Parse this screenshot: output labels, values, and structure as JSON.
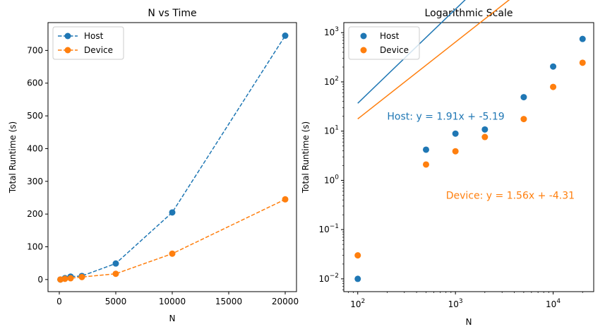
{
  "colors": {
    "host": "#1f77b4",
    "device": "#ff7f0e",
    "axis": "#000000",
    "legend_border": "#cccccc"
  },
  "chart_data": [
    {
      "type": "line",
      "title": "N vs Time",
      "xlabel": "N",
      "ylabel": "Total Runtime (s)",
      "xlim": [
        -1000,
        21000
      ],
      "ylim": [
        -37,
        785
      ],
      "xticks": [
        0,
        5000,
        10000,
        15000,
        20000
      ],
      "yticks": [
        0,
        100,
        200,
        300,
        400,
        500,
        600,
        700
      ],
      "legend_position": "upper-left",
      "x": [
        100,
        500,
        1000,
        2000,
        5000,
        10000,
        20000
      ],
      "series": [
        {
          "name": "Host",
          "style": "dashed line with circle markers",
          "values": [
            0.01,
            4.2,
            8.9,
            10.8,
            49,
            205,
            745
          ]
        },
        {
          "name": "Device",
          "style": "dashed line with circle markers",
          "values": [
            0.03,
            2.1,
            3.9,
            7.6,
            17.6,
            79,
            245
          ]
        }
      ]
    },
    {
      "type": "scatter",
      "title": "Logarithmic Scale",
      "xlabel": "N",
      "ylabel": "Total Runtime (s)",
      "xscale": "log",
      "yscale": "log",
      "xlim": [
        72,
        26000
      ],
      "ylim": [
        0.0055,
        1600
      ],
      "xticks": [
        100,
        1000,
        10000
      ],
      "yticks": [
        0.01,
        0.1,
        1,
        10,
        100,
        1000
      ],
      "legend_position": "upper-left",
      "x": [
        100,
        500,
        1000,
        2000,
        5000,
        10000,
        20000
      ],
      "series": [
        {
          "name": "Host",
          "values": [
            0.01,
            4.2,
            8.9,
            10.8,
            49,
            205,
            745
          ],
          "fit": {
            "slope": 1.91,
            "intercept": -5.19
          }
        },
        {
          "name": "Device",
          "values": [
            0.03,
            2.1,
            3.9,
            7.6,
            17.6,
            79,
            245
          ],
          "fit": {
            "slope": 1.56,
            "intercept": -4.31
          }
        }
      ],
      "fit_x_range": [
        100,
        20000
      ],
      "annotations": [
        {
          "series": "Host",
          "text": "Host: y = 1.91x + -5.19",
          "x": 200,
          "y": 20
        },
        {
          "series": "Device",
          "text": "Device: y = 1.56x + -4.31",
          "x": 800,
          "y": 0.5
        }
      ]
    }
  ]
}
